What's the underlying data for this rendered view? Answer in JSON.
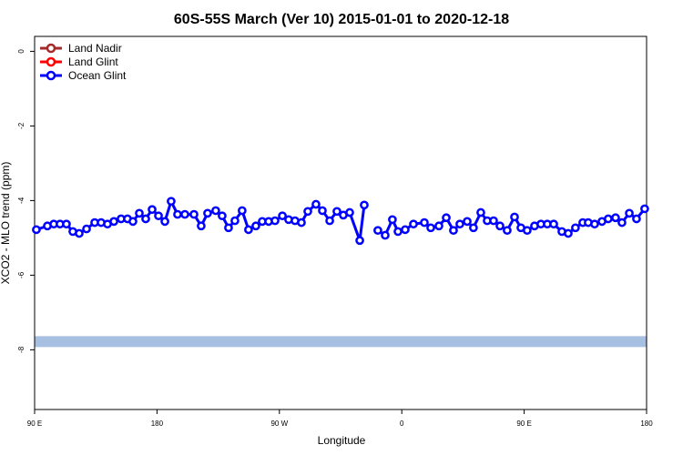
{
  "chart_data": {
    "type": "line",
    "title": "60S-55S March (Ver 10)   2015-01-01 to 2020-12-18",
    "x_label": "Longitude",
    "y_label": "XCO2 - MLO trend (ppm)",
    "xlim": [
      90,
      540
    ],
    "ylim": [
      -9.6,
      0.4
    ],
    "xticks": [
      {
        "value": 90,
        "label": "90 E"
      },
      180,
      {
        "value": 270,
        "label": "90 W"
      },
      {
        "value": 360,
        "label": "0"
      },
      {
        "value": 450,
        "label": "90 E"
      },
      {
        "value": 540,
        "label": "180"
      }
    ],
    "yticks": [
      0,
      -2,
      -4,
      -6,
      -8
    ],
    "legend": "top-left",
    "reference_band": {
      "value": -7.78,
      "color": "#a7bfe0"
    },
    "x": [
      91.3,
      99.4,
      104.1,
      108.7,
      113.4,
      118.1,
      122.8,
      128.2,
      134.2,
      138.9,
      143.6,
      148.3,
      153.6,
      158.3,
      162.3,
      167.0,
      171.7,
      176.4,
      181.1,
      185.8,
      190.4,
      195.1,
      200.5,
      207.2,
      212.5,
      217.2,
      223.2,
      227.9,
      232.6,
      237.3,
      242.6,
      247.3,
      252.7,
      257.4,
      262.1,
      266.8,
      272.2,
      276.8,
      281.5,
      286.2,
      290.9,
      296.9,
      301.6,
      307.0,
      312.3,
      317.0,
      321.7,
      329.1,
      332.4,
      337.4,
      342.4,
      347.8,
      353.1,
      357.2,
      362.5,
      368.6,
      376.6,
      381.3,
      387.3,
      392.7,
      398.0,
      402.7,
      408.1,
      412.7,
      418.1,
      422.8,
      427.5,
      432.2,
      437.5,
      442.9,
      447.6,
      452.2,
      457.6,
      462.3,
      467.0,
      471.7,
      477.7,
      482.4,
      487.7,
      493.1,
      497.1,
      501.8,
      507.2,
      511.8,
      517.2,
      521.9,
      527.3,
      532.6,
      538.6
    ],
    "series": [
      {
        "name": "Land Nadir",
        "color": "#a52a2a",
        "values": [
          null,
          null,
          null,
          null,
          null,
          null,
          null,
          null,
          null,
          null,
          null,
          null,
          null,
          null,
          null,
          null,
          null,
          null,
          null,
          null,
          null,
          null,
          null,
          null,
          null,
          null,
          null,
          null,
          null,
          null,
          null,
          null,
          null,
          null,
          null,
          null,
          null,
          null,
          null,
          null,
          null,
          null,
          null,
          null,
          null,
          null,
          null,
          null,
          null,
          null,
          null,
          null,
          null,
          null,
          null,
          null,
          null,
          null,
          null,
          null,
          null,
          null,
          null,
          null,
          null,
          null,
          null,
          null,
          null,
          null,
          null,
          null,
          null,
          null,
          null,
          null,
          null,
          null,
          null,
          null,
          null,
          null,
          null,
          null,
          null,
          null,
          null,
          null,
          null
        ]
      },
      {
        "name": "Land Glint",
        "color": "#ff0000",
        "values": [
          null,
          null,
          null,
          null,
          null,
          null,
          null,
          null,
          null,
          null,
          null,
          null,
          null,
          null,
          null,
          null,
          null,
          null,
          null,
          null,
          null,
          null,
          null,
          null,
          null,
          null,
          null,
          null,
          null,
          null,
          null,
          null,
          null,
          null,
          null,
          null,
          null,
          null,
          null,
          null,
          null,
          null,
          null,
          null,
          null,
          null,
          null,
          null,
          null,
          null,
          null,
          null,
          null,
          null,
          null,
          null,
          null,
          null,
          null,
          null,
          null,
          null,
          null,
          null,
          null,
          null,
          null,
          null,
          null,
          null,
          null,
          null,
          null,
          null,
          null,
          null,
          null,
          null,
          null,
          null,
          null,
          null,
          null,
          null,
          null,
          null,
          null,
          null,
          null
        ]
      },
      {
        "name": "Ocean Glint",
        "color": "#0000ff",
        "values": [
          -4.78,
          -4.68,
          -4.63,
          -4.63,
          -4.63,
          -4.83,
          -4.88,
          -4.76,
          -4.59,
          -4.59,
          -4.63,
          -4.56,
          -4.49,
          -4.49,
          -4.56,
          -4.34,
          -4.49,
          -4.24,
          -4.41,
          -4.56,
          -4.02,
          -4.37,
          -4.37,
          -4.37,
          -4.68,
          -4.34,
          -4.27,
          -4.41,
          -4.73,
          -4.54,
          -4.27,
          -4.78,
          -4.68,
          -4.56,
          -4.56,
          -4.54,
          -4.41,
          -4.51,
          -4.54,
          -4.59,
          -4.29,
          -4.1,
          -4.27,
          -4.54,
          -4.29,
          -4.39,
          -4.32,
          -5.07,
          -4.12,
          null,
          -4.8,
          -4.93,
          -4.51,
          -4.83,
          -4.78,
          -4.63,
          -4.59,
          -4.73,
          -4.68,
          -4.46,
          -4.8,
          -4.63,
          -4.56,
          -4.73,
          -4.32,
          -4.54,
          -4.54,
          -4.68,
          -4.8,
          -4.44,
          -4.73,
          -4.8,
          -4.68,
          -4.63,
          -4.63,
          -4.63,
          -4.83,
          -4.88,
          -4.73,
          -4.59,
          -4.59,
          -4.63,
          -4.56,
          -4.49,
          -4.46,
          -4.59,
          -4.34,
          -4.49,
          -4.22
        ]
      }
    ]
  }
}
